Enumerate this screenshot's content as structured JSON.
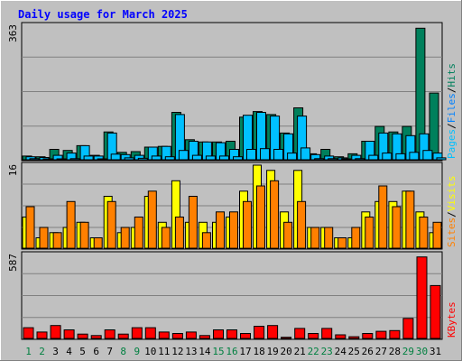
{
  "chart_data": {
    "type": "bar",
    "title": "Daily usage for March 2025",
    "categories": [
      "1",
      "2",
      "3",
      "4",
      "5",
      "6",
      "7",
      "8",
      "9",
      "10",
      "11",
      "12",
      "13",
      "14",
      "15",
      "16",
      "17",
      "18",
      "19",
      "20",
      "21",
      "22",
      "23",
      "24",
      "25",
      "26",
      "27",
      "28",
      "29",
      "30",
      "31"
    ],
    "weekend_days": [
      "1",
      "2",
      "8",
      "9",
      "15",
      "16",
      "22",
      "23",
      "29",
      "30"
    ],
    "panels": [
      {
        "id": "hits-files-pages",
        "max_label": "363",
        "ylim": [
          0,
          363
        ],
        "side_labels": [
          "Pages",
          "Files",
          "Hits"
        ],
        "series": [
          {
            "name": "Hits",
            "color": "#00805c",
            "values": [
              10,
              8,
              28,
              25,
              38,
              12,
              75,
              20,
              22,
              34,
              36,
              128,
              54,
              48,
              48,
              50,
              115,
              130,
              122,
              72,
              140,
              16,
              28,
              8,
              16,
              50,
              90,
              75,
              90,
              355,
              180
            ]
          },
          {
            "name": "Files",
            "color": "#00c0ff",
            "values": [
              8,
              6,
              12,
              18,
              38,
              10,
              72,
              14,
              12,
              34,
              36,
              122,
              50,
              48,
              46,
              28,
              120,
              128,
              118,
              70,
              118,
              14,
              10,
              5,
              12,
              50,
              72,
              70,
              65,
              70,
              18
            ]
          },
          {
            "name": "Pages",
            "color": "#00c0ff",
            "values": [
              3,
              2,
              2,
              3,
              10,
              2,
              15,
              5,
              4,
              10,
              8,
              25,
              12,
              10,
              10,
              8,
              28,
              30,
              28,
              18,
              32,
              3,
              3,
              2,
              3,
              12,
              18,
              16,
              20,
              25,
              5
            ]
          }
        ]
      },
      {
        "id": "visits-sites",
        "max_label": "16",
        "ylim": [
          0,
          16
        ],
        "side_labels": [
          "Sites",
          "Visits"
        ],
        "series": [
          {
            "name": "Visits",
            "color": "#ffff00",
            "values": [
              6,
              2,
              3,
              4,
              5,
              2,
              10,
              3,
              4,
              10,
              5,
              13,
              5,
              5,
              5,
              6,
              11,
              16,
              15,
              7,
              15,
              4,
              4,
              2,
              2,
              7,
              9,
              9,
              11,
              7,
              3
            ]
          },
          {
            "name": "Sites",
            "color": "#ff8000",
            "values": [
              8,
              4,
              3,
              9,
              5,
              2,
              9,
              4,
              6,
              11,
              4,
              6,
              10,
              3,
              7,
              7,
              9,
              12,
              13,
              5,
              9,
              4,
              4,
              2,
              4,
              6,
              12,
              8,
              11,
              6,
              5
            ]
          }
        ]
      },
      {
        "id": "kbytes",
        "max_label": "587",
        "ylim": [
          0,
          587
        ],
        "side_labels": [
          "KBytes"
        ],
        "series": [
          {
            "name": "KBytes",
            "color": "#ff0000",
            "values": [
              75,
              45,
              90,
              60,
              30,
              20,
              60,
              30,
              75,
              75,
              45,
              35,
              45,
              20,
              60,
              60,
              35,
              85,
              90,
              8,
              70,
              35,
              70,
              25,
              12,
              35,
              50,
              55,
              140,
              570,
              370
            ]
          }
        ]
      }
    ],
    "colors": {
      "background": "#c0c0c0",
      "title": "#0000ff",
      "grid": "#808080",
      "weekday_label": "#000000",
      "weekend_label": "#008040"
    }
  }
}
